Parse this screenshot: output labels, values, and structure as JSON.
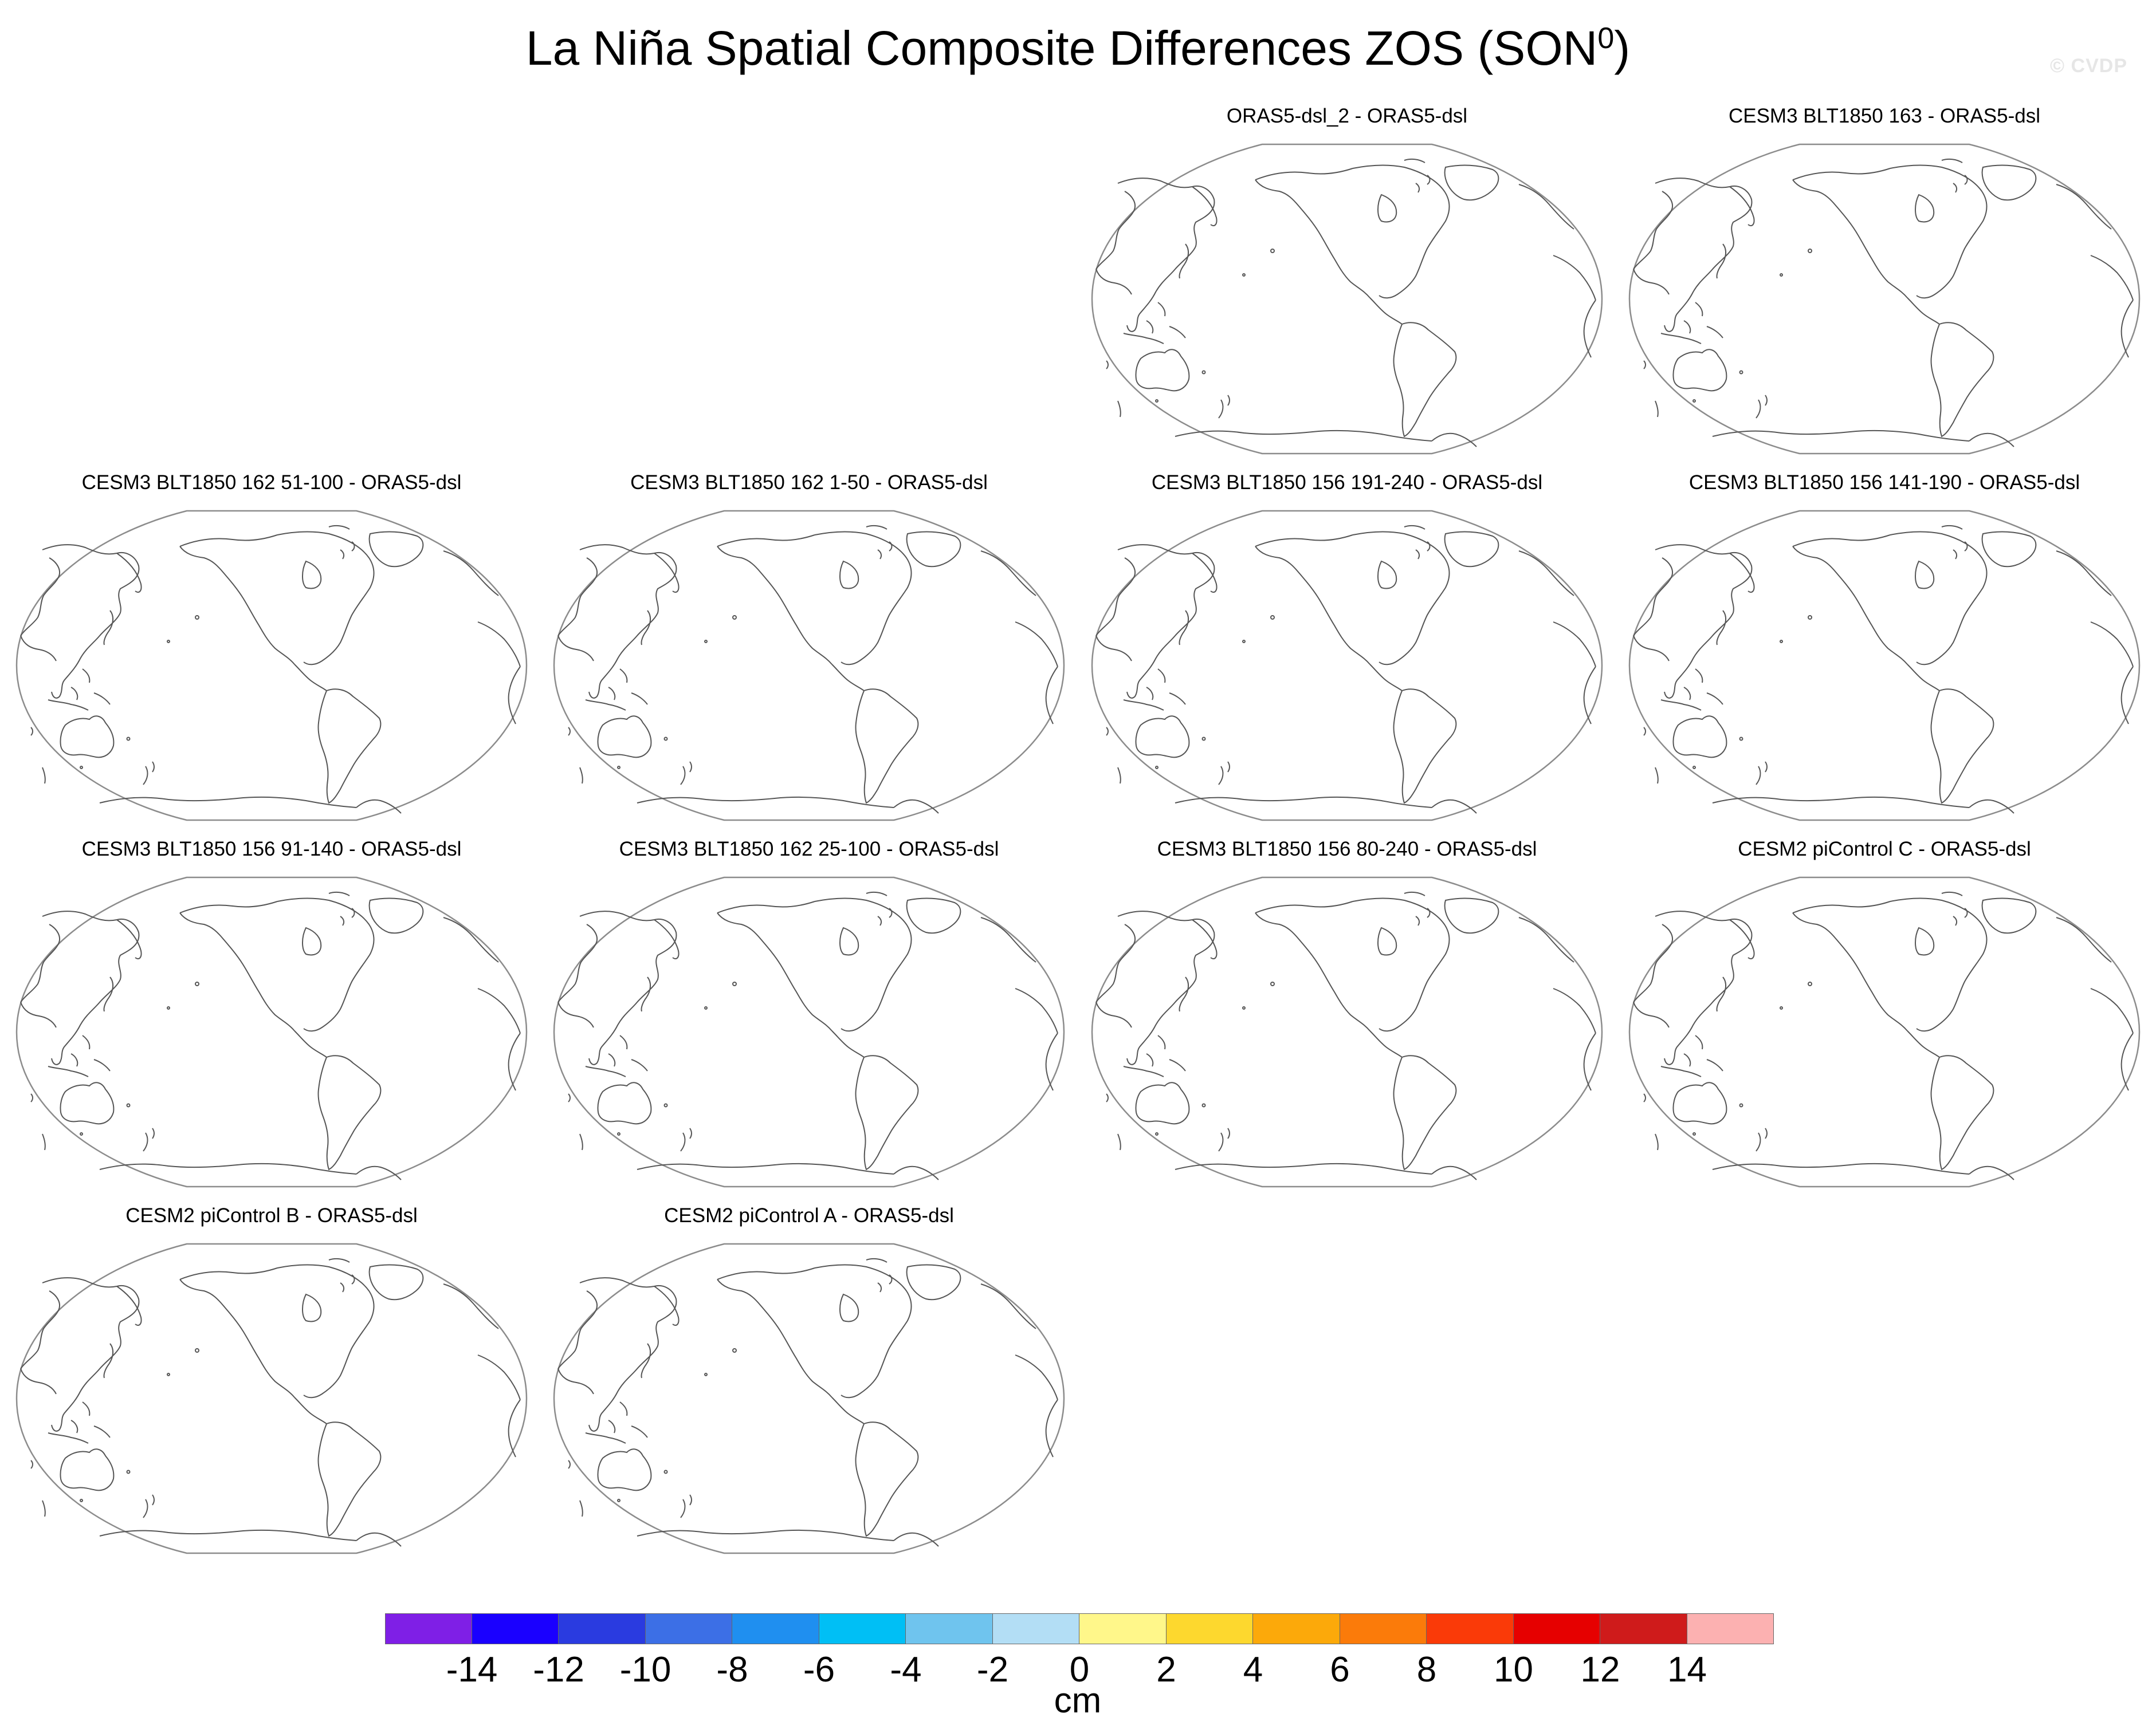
{
  "figure": {
    "title": "La Niña Spatial Composite Differences ZOS (SON",
    "title_superscript": "0",
    "title_suffix": ")",
    "watermark": "© CVDP"
  },
  "panels": [
    "ORAS5-dsl_2 - ORAS5-dsl",
    "CESM3 BLT1850 163 - ORAS5-dsl",
    "CESM3 BLT1850 162 51-100 - ORAS5-dsl",
    "CESM3 BLT1850 162 1-50 - ORAS5-dsl",
    "CESM3 BLT1850 156 191-240 - ORAS5-dsl",
    "CESM3 BLT1850 156 141-190 - ORAS5-dsl",
    "CESM3 BLT1850 156 91-140 - ORAS5-dsl",
    "CESM3 BLT1850 162 25-100 - ORAS5-dsl",
    "CESM3 BLT1850 156 80-240 - ORAS5-dsl",
    "CESM2 piControl C - ORAS5-dsl",
    "CESM2 piControl B - ORAS5-dsl",
    "CESM2 piControl A - ORAS5-dsl"
  ],
  "colorbar": {
    "units": "cm",
    "tick_labels": [
      "-14",
      "-12",
      "-10",
      "-8",
      "-6",
      "-4",
      "-2",
      "0",
      "2",
      "4",
      "6",
      "8",
      "10",
      "12",
      "14"
    ],
    "colors": [
      "#7f1fe6",
      "#1a00ff",
      "#2a3be0",
      "#3c6fe6",
      "#1f8ff0",
      "#00bff5",
      "#6fc4ee",
      "#b3def5",
      "#fff78a",
      "#fdd82e",
      "#fca90a",
      "#fb7b0a",
      "#fa3a08",
      "#e60000",
      "#cf1b1b",
      "#fcb1b1"
    ]
  }
}
